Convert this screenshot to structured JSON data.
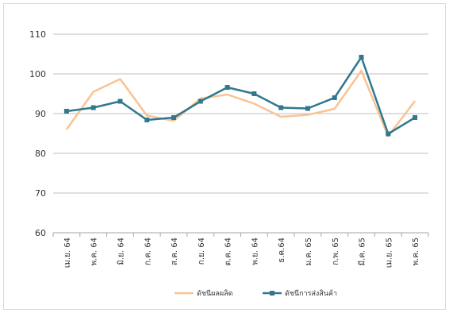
{
  "chart_data": {
    "type": "line",
    "title": "",
    "xlabel": "",
    "ylabel": "",
    "ylim": [
      60,
      110
    ],
    "yticks": [
      60,
      70,
      80,
      90,
      100,
      110
    ],
    "grid": true,
    "legend_position": "bottom",
    "categories": [
      "เม.ย. 64",
      "พ.ค. 64",
      "มิ.ย. 64",
      "ก.ค. 64",
      "ส.ค. 64",
      "ก.ย. 64",
      "ต.ค. 64",
      "พ.ย. 64",
      "ธ.ค.64",
      "ม.ค. 65",
      "ก.พ. 65",
      "มี.ค. 65",
      "เม.ย. 65",
      "พ.ค. 65"
    ],
    "series": [
      {
        "name": "ดัชนีผลผลิต",
        "color": "#f9c393",
        "marker": "none",
        "values": [
          86.0,
          95.5,
          98.7,
          89.5,
          88.2,
          93.8,
          94.8,
          92.5,
          89.2,
          89.7,
          91.2,
          100.8,
          84.3,
          93.2
        ]
      },
      {
        "name": "ดัชนีการส่งสินค้า",
        "color": "#30788e",
        "marker": "square",
        "values": [
          90.6,
          91.5,
          93.1,
          88.4,
          89.0,
          93.1,
          96.6,
          95.0,
          91.5,
          91.3,
          94.0,
          104.2,
          84.9,
          89.0
        ]
      }
    ]
  }
}
